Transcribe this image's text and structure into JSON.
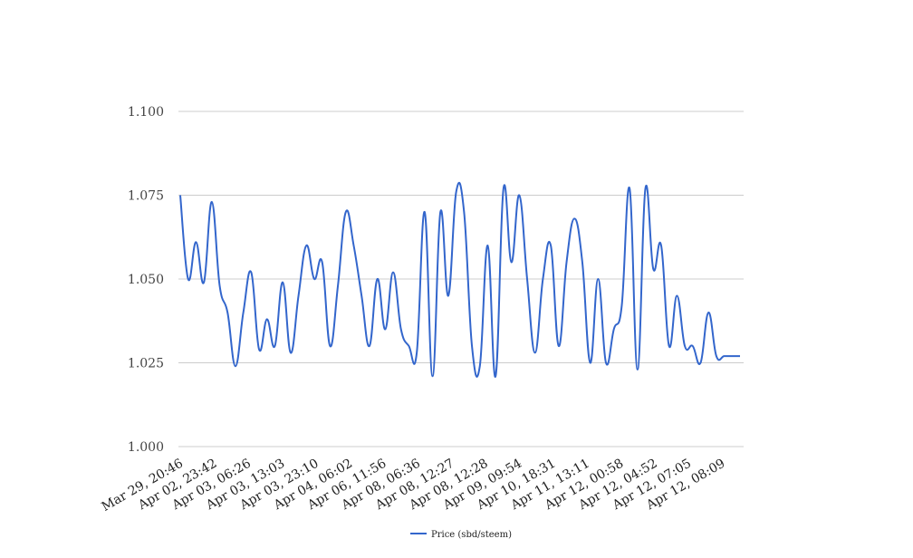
{
  "chart_data": {
    "type": "line",
    "title": "",
    "xlabel": "",
    "ylabel": "",
    "ylim": [
      1.0,
      1.1
    ],
    "y_ticks": [
      "1.000",
      "1.025",
      "1.050",
      "1.075",
      "1.100"
    ],
    "grid": true,
    "legend_position": "bottom",
    "x_tick_labels": [
      "Mar 29, 20:46",
      "Apr 02, 23:42",
      "Apr 03, 06:26",
      "Apr 03, 13:03",
      "Apr 03, 23:10",
      "Apr 04, 06:02",
      "Apr 06, 11:56",
      "Apr 08, 06:36",
      "Apr 08, 12:27",
      "Apr 08, 12:28",
      "Apr 09, 09:54",
      "Apr 10, 18:31",
      "Apr 11, 13:11",
      "Apr 12, 00:58",
      "Apr 12, 04:52",
      "Apr 12, 07:05",
      "Apr 12, 08:09"
    ],
    "series": [
      {
        "name": "Price (sbd/steem)",
        "color": "#3366cc",
        "values": [
          1.075,
          1.05,
          1.061,
          1.049,
          1.073,
          1.048,
          1.04,
          1.024,
          1.04,
          1.052,
          1.029,
          1.038,
          1.03,
          1.049,
          1.028,
          1.045,
          1.06,
          1.05,
          1.055,
          1.03,
          1.048,
          1.07,
          1.06,
          1.045,
          1.03,
          1.05,
          1.035,
          1.052,
          1.035,
          1.03,
          1.028,
          1.07,
          1.021,
          1.07,
          1.045,
          1.076,
          1.07,
          1.03,
          1.024,
          1.06,
          1.021,
          1.077,
          1.055,
          1.075,
          1.05,
          1.028,
          1.05,
          1.06,
          1.03,
          1.055,
          1.068,
          1.055,
          1.025,
          1.05,
          1.025,
          1.035,
          1.042,
          1.077,
          1.023,
          1.077,
          1.053,
          1.06,
          1.03,
          1.045,
          1.03,
          1.03,
          1.025,
          1.04,
          1.027,
          1.027,
          1.027,
          1.027
        ]
      }
    ]
  }
}
